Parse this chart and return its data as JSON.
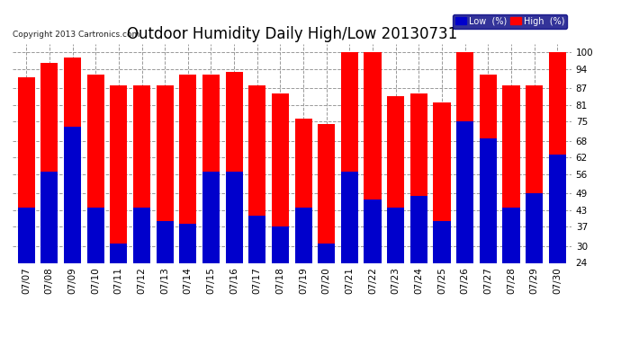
{
  "title": "Outdoor Humidity Daily High/Low 20130731",
  "copyright": "Copyright 2013 Cartronics.com",
  "dates": [
    "07/07",
    "07/08",
    "07/09",
    "07/10",
    "07/11",
    "07/12",
    "07/13",
    "07/14",
    "07/15",
    "07/16",
    "07/17",
    "07/18",
    "07/19",
    "07/20",
    "07/21",
    "07/22",
    "07/23",
    "07/24",
    "07/25",
    "07/26",
    "07/27",
    "07/28",
    "07/29",
    "07/30"
  ],
  "high": [
    91,
    96,
    98,
    92,
    88,
    88,
    88,
    92,
    92,
    93,
    88,
    85,
    76,
    74,
    100,
    100,
    84,
    85,
    82,
    100,
    92,
    88,
    88,
    100
  ],
  "low": [
    44,
    57,
    73,
    44,
    31,
    44,
    39,
    38,
    57,
    57,
    41,
    37,
    44,
    31,
    57,
    47,
    44,
    48,
    39,
    75,
    69,
    44,
    49,
    63
  ],
  "ymin": 24,
  "ylim": [
    24,
    103
  ],
  "yticks": [
    24,
    30,
    37,
    43,
    49,
    56,
    62,
    68,
    75,
    81,
    87,
    94,
    100
  ],
  "high_color": "#ff0000",
  "low_color": "#0000cc",
  "bg_color": "#ffffff",
  "plot_bg_color": "#ffffff",
  "grid_color": "#999999",
  "title_fontsize": 12,
  "tick_fontsize": 7.5,
  "legend_low_label": "Low  (%)",
  "legend_high_label": "High  (%)"
}
